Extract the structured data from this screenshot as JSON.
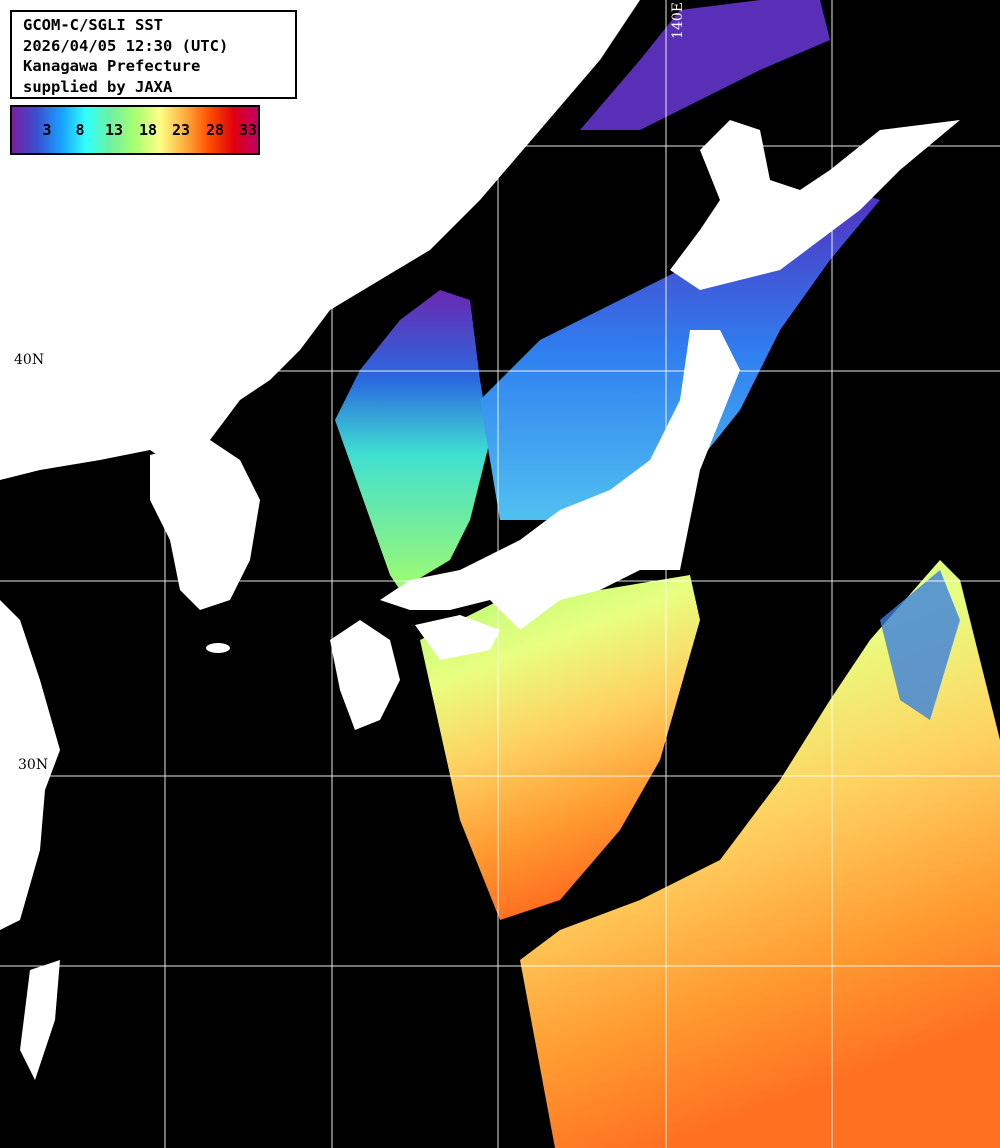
{
  "title": {
    "lines": [
      "GCOM-C/SGLI SST",
      "2026/04/05 12:30 (UTC)",
      "Kanagawa Prefecture",
      "supplied by JAXA"
    ]
  },
  "legend": {
    "ticks": [
      "3",
      "8",
      "13",
      "18",
      "23",
      "28",
      "33"
    ],
    "colors": [
      "#7a1fa0",
      "#3a4fd0",
      "#18a0ff",
      "#30ffff",
      "#70f0a0",
      "#a8ff70",
      "#ffff88",
      "#ffb040",
      "#ff5000",
      "#e00010",
      "#c0006a"
    ]
  },
  "grid": {
    "lat_labels": [
      "40N",
      "30N"
    ],
    "lon_labels": [
      "140E"
    ]
  },
  "colors": {
    "land": "#ffffff",
    "no_data": "#000000",
    "grid": "#ffffff"
  }
}
